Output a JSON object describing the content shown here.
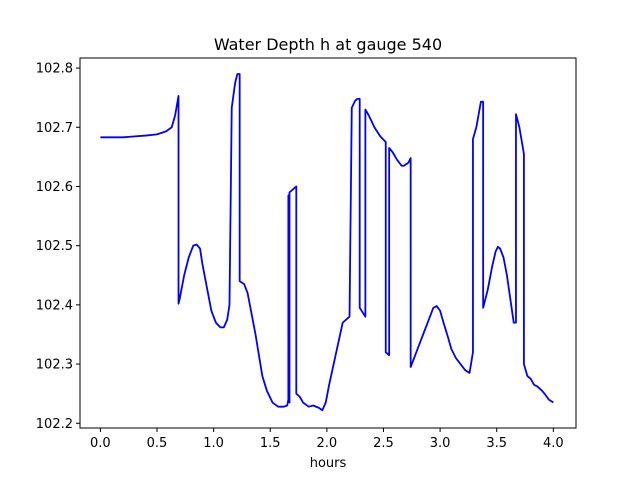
{
  "chart_data": {
    "type": "line",
    "title": "Water Depth h at gauge 540",
    "xlabel": "hours",
    "ylabel": "",
    "xlim": [
      -0.18,
      4.2
    ],
    "ylim": [
      102.192,
      102.817
    ],
    "xticks": [
      0.0,
      0.5,
      1.0,
      1.5,
      2.0,
      2.5,
      3.0,
      3.5,
      4.0
    ],
    "xtick_labels": [
      "0.0",
      "0.5",
      "1.0",
      "1.5",
      "2.0",
      "2.5",
      "3.0",
      "3.5",
      "4.0"
    ],
    "yticks": [
      102.2,
      102.3,
      102.4,
      102.5,
      102.6,
      102.7,
      102.8
    ],
    "ytick_labels": [
      "102.2",
      "102.3",
      "102.4",
      "102.5",
      "102.6",
      "102.7",
      "102.8"
    ],
    "grid": false,
    "series": [
      {
        "color": "#0000ff",
        "x": [
          0.0,
          0.2,
          0.4,
          0.5,
          0.58,
          0.63,
          0.66,
          0.69,
          0.69,
          0.7,
          0.74,
          0.78,
          0.82,
          0.85,
          0.88,
          0.9,
          0.94,
          0.98,
          1.02,
          1.06,
          1.09,
          1.12,
          1.14,
          1.16,
          1.16,
          1.19,
          1.21,
          1.23,
          1.23,
          1.27,
          1.3,
          1.33,
          1.37,
          1.4,
          1.43,
          1.47,
          1.52,
          1.57,
          1.62,
          1.65,
          1.66,
          1.66,
          1.67,
          1.67,
          1.7,
          1.73,
          1.73,
          1.76,
          1.79,
          1.84,
          1.88,
          1.93,
          1.96,
          1.99,
          2.02,
          2.06,
          2.1,
          2.14,
          2.2,
          2.22,
          2.22,
          2.25,
          2.27,
          2.29,
          2.29,
          2.34,
          2.34,
          2.37,
          2.42,
          2.47,
          2.52,
          2.52,
          2.55,
          2.55,
          2.58,
          2.62,
          2.66,
          2.68,
          2.72,
          2.74,
          2.74,
          2.77,
          2.82,
          2.86,
          2.9,
          2.94,
          2.97,
          3.0,
          3.03,
          3.07,
          3.1,
          3.14,
          3.18,
          3.22,
          3.26,
          3.29,
          3.29,
          3.32,
          3.36,
          3.38,
          3.38,
          3.42,
          3.46,
          3.49,
          3.51,
          3.53,
          3.56,
          3.59,
          3.62,
          3.65,
          3.67,
          3.67,
          3.7,
          3.74,
          3.74,
          3.77,
          3.8,
          3.83,
          3.86,
          3.9,
          3.93,
          3.96,
          4.0
        ],
        "y": [
          102.683,
          102.683,
          102.686,
          102.688,
          102.693,
          102.7,
          102.72,
          102.753,
          102.402,
          102.41,
          102.45,
          102.48,
          102.5,
          102.502,
          102.495,
          102.47,
          102.43,
          102.39,
          102.37,
          102.362,
          102.362,
          102.375,
          102.4,
          102.733,
          102.733,
          102.775,
          102.79,
          102.79,
          102.44,
          102.435,
          102.42,
          102.39,
          102.35,
          102.315,
          102.28,
          102.255,
          102.235,
          102.228,
          102.228,
          102.23,
          102.24,
          102.585,
          102.235,
          102.59,
          102.595,
          102.6,
          102.25,
          102.245,
          102.235,
          102.228,
          102.23,
          102.226,
          102.222,
          102.235,
          102.265,
          102.3,
          102.335,
          102.37,
          102.38,
          102.733,
          102.733,
          102.745,
          102.748,
          102.748,
          102.395,
          102.38,
          102.73,
          102.72,
          102.7,
          102.685,
          102.675,
          102.32,
          102.315,
          102.665,
          102.658,
          102.645,
          102.635,
          102.635,
          102.64,
          102.648,
          102.295,
          102.31,
          102.335,
          102.355,
          102.375,
          102.395,
          102.398,
          102.39,
          102.37,
          102.345,
          102.325,
          102.31,
          102.3,
          102.29,
          102.285,
          102.32,
          102.68,
          102.7,
          102.743,
          102.743,
          102.395,
          102.425,
          102.465,
          102.49,
          102.498,
          102.495,
          102.48,
          102.45,
          102.41,
          102.37,
          102.37,
          102.722,
          102.7,
          102.655,
          102.3,
          102.28,
          102.275,
          102.265,
          102.262,
          102.255,
          102.248,
          102.24,
          102.235
        ]
      }
    ]
  }
}
